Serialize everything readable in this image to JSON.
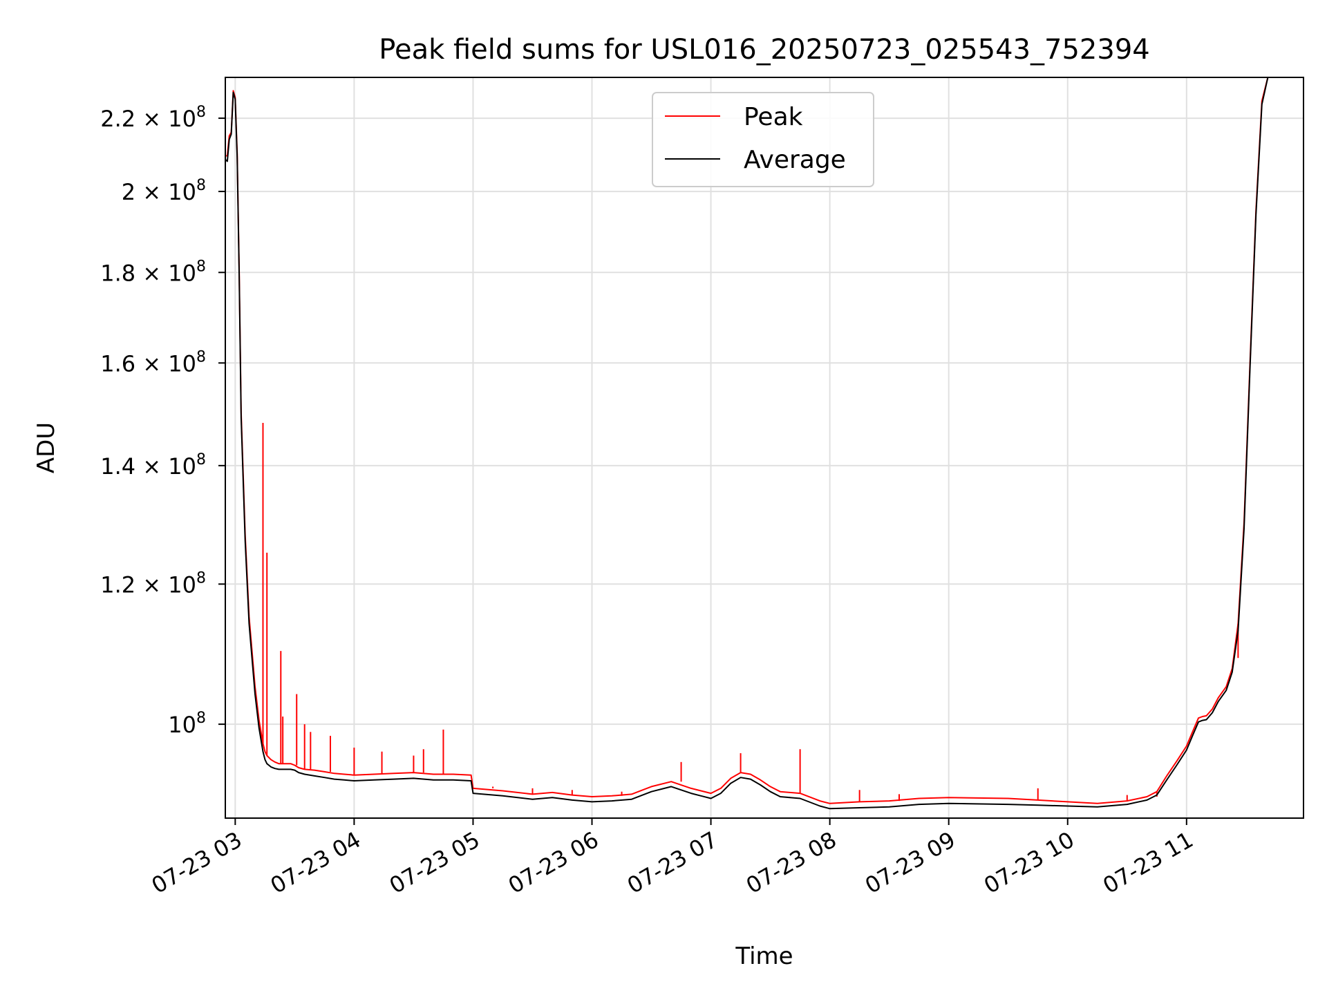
{
  "chart_data": {
    "type": "line",
    "title": "Peak field sums for USL016_20250723_025543_752394",
    "xlabel": "Time",
    "ylabel": "ADU",
    "y_scale": "log",
    "grid": true,
    "legend_position": "upper center",
    "xlim": [
      "2025-07-23T02:55:00",
      "2025-07-23T11:59:00"
    ],
    "ylim": [
      88500000,
      232000000
    ],
    "x_ticks": [
      {
        "value": "2025-07-23T03:00:00",
        "label": "07-23 03"
      },
      {
        "value": "2025-07-23T04:00:00",
        "label": "07-23 04"
      },
      {
        "value": "2025-07-23T05:00:00",
        "label": "07-23 05"
      },
      {
        "value": "2025-07-23T06:00:00",
        "label": "07-23 06"
      },
      {
        "value": "2025-07-23T07:00:00",
        "label": "07-23 07"
      },
      {
        "value": "2025-07-23T08:00:00",
        "label": "07-23 08"
      },
      {
        "value": "2025-07-23T09:00:00",
        "label": "07-23 09"
      },
      {
        "value": "2025-07-23T10:00:00",
        "label": "07-23 10"
      },
      {
        "value": "2025-07-23T11:00:00",
        "label": "07-23 11"
      }
    ],
    "y_ticks": [
      {
        "value": 100000000,
        "mantissa": "",
        "exp": "8"
      },
      {
        "value": 120000000,
        "mantissa": "1.2",
        "exp": "8"
      },
      {
        "value": 140000000,
        "mantissa": "1.4",
        "exp": "8"
      },
      {
        "value": 160000000,
        "mantissa": "1.6",
        "exp": "8"
      },
      {
        "value": 180000000,
        "mantissa": "1.8",
        "exp": "8"
      },
      {
        "value": 200000000,
        "mantissa": "2",
        "exp": "8"
      },
      {
        "value": 220000000,
        "mantissa": "2.2",
        "exp": "8"
      }
    ],
    "series": [
      {
        "name": "Peak",
        "color": "#ff0000",
        "x": [
          "2025-07-23T02:55:00",
          "2025-07-23T02:56:00",
          "2025-07-23T02:57:00",
          "2025-07-23T02:58:00",
          "2025-07-23T02:59:00",
          "2025-07-23T03:00:00",
          "2025-07-23T03:01:00",
          "2025-07-23T03:02:00",
          "2025-07-23T03:03:00",
          "2025-07-23T03:05:00",
          "2025-07-23T03:07:00",
          "2025-07-23T03:10:00",
          "2025-07-23T03:12:00",
          "2025-07-23T03:14:00",
          "2025-07-23T03:15:00",
          "2025-07-23T03:16:00",
          "2025-07-23T03:18:00",
          "2025-07-23T03:20:00",
          "2025-07-23T03:22:00",
          "2025-07-23T03:25:00",
          "2025-07-23T03:28:00",
          "2025-07-23T03:30:00",
          "2025-07-23T03:32:00",
          "2025-07-23T03:35:00",
          "2025-07-23T03:40:00",
          "2025-07-23T03:45:00",
          "2025-07-23T03:50:00",
          "2025-07-23T03:55:00",
          "2025-07-23T04:00:00",
          "2025-07-23T04:10:00",
          "2025-07-23T04:20:00",
          "2025-07-23T04:30:00",
          "2025-07-23T04:40:00",
          "2025-07-23T04:50:00",
          "2025-07-23T04:59:00",
          "2025-07-23T05:00:00",
          "2025-07-23T05:15:00",
          "2025-07-23T05:30:00",
          "2025-07-23T05:40:00",
          "2025-07-23T05:50:00",
          "2025-07-23T06:00:00",
          "2025-07-23T06:10:00",
          "2025-07-23T06:20:00",
          "2025-07-23T06:30:00",
          "2025-07-23T06:40:00",
          "2025-07-23T06:50:00",
          "2025-07-23T06:55:00",
          "2025-07-23T07:00:00",
          "2025-07-23T07:05:00",
          "2025-07-23T07:10:00",
          "2025-07-23T07:15:00",
          "2025-07-23T07:20:00",
          "2025-07-23T07:25:00",
          "2025-07-23T07:30:00",
          "2025-07-23T07:35:00",
          "2025-07-23T07:45:00",
          "2025-07-23T07:55:00",
          "2025-07-23T08:00:00",
          "2025-07-23T08:15:00",
          "2025-07-23T08:30:00",
          "2025-07-23T08:45:00",
          "2025-07-23T09:00:00",
          "2025-07-23T09:30:00",
          "2025-07-23T09:45:00",
          "2025-07-23T10:00:00",
          "2025-07-23T10:15:00",
          "2025-07-23T10:30:00",
          "2025-07-23T10:40:00",
          "2025-07-23T10:45:00",
          "2025-07-23T10:50:00",
          "2025-07-23T10:55:00",
          "2025-07-23T11:00:00",
          "2025-07-23T11:03:00",
          "2025-07-23T11:06:00",
          "2025-07-23T11:08:00",
          "2025-07-23T11:10:00",
          "2025-07-23T11:13:00",
          "2025-07-23T11:16:00",
          "2025-07-23T11:20:00",
          "2025-07-23T11:23:00",
          "2025-07-23T11:26:00",
          "2025-07-23T11:29:00",
          "2025-07-23T11:32:00",
          "2025-07-23T11:35:00",
          "2025-07-23T11:38:00",
          "2025-07-23T11:41:00"
        ],
        "y": [
          209500000,
          209500000,
          215000000,
          216000000,
          228000000,
          226000000,
          210000000,
          180000000,
          150000000,
          128000000,
          115000000,
          105000000,
          100500000,
          97500000,
          96500000,
          96000000,
          95500000,
          95200000,
          95000000,
          95000000,
          95000000,
          94800000,
          94500000,
          94300000,
          94200000,
          94000000,
          93800000,
          93700000,
          93600000,
          93700000,
          93800000,
          93900000,
          93700000,
          93700000,
          93600000,
          92000000,
          91700000,
          91300000,
          91500000,
          91200000,
          91000000,
          91100000,
          91300000,
          92200000,
          92800000,
          92000000,
          91700000,
          91400000,
          92000000,
          93200000,
          93900000,
          93700000,
          93000000,
          92200000,
          91600000,
          91400000,
          90500000,
          90200000,
          90400000,
          90500000,
          90800000,
          90900000,
          90800000,
          90600000,
          90400000,
          90200000,
          90500000,
          91000000,
          91600000,
          93500000,
          95300000,
          97200000,
          99000000,
          100800000,
          101000000,
          101100000,
          102000000,
          103500000,
          105000000,
          107500000,
          114000000,
          130000000,
          160000000,
          195000000,
          225000000,
          232000000
        ],
        "spikes": [
          {
            "x": "2025-07-23T03:14:00",
            "y": 148000000
          },
          {
            "x": "2025-07-23T03:16:00",
            "y": 125000000
          },
          {
            "x": "2025-07-23T03:23:00",
            "y": 110000000
          },
          {
            "x": "2025-07-23T03:24:00",
            "y": 101000000
          },
          {
            "x": "2025-07-23T03:31:00",
            "y": 104000000
          },
          {
            "x": "2025-07-23T03:35:00",
            "y": 100000000
          },
          {
            "x": "2025-07-23T03:38:00",
            "y": 99000000
          },
          {
            "x": "2025-07-23T03:48:00",
            "y": 98500000
          },
          {
            "x": "2025-07-23T04:00:00",
            "y": 97000000
          },
          {
            "x": "2025-07-23T04:14:00",
            "y": 96500000
          },
          {
            "x": "2025-07-23T04:30:00",
            "y": 96000000
          },
          {
            "x": "2025-07-23T04:35:00",
            "y": 96800000
          },
          {
            "x": "2025-07-23T04:45:00",
            "y": 99300000
          },
          {
            "x": "2025-07-23T05:10:00",
            "y": 92200000
          },
          {
            "x": "2025-07-23T05:30:00",
            "y": 92000000
          },
          {
            "x": "2025-07-23T05:50:00",
            "y": 91800000
          },
          {
            "x": "2025-07-23T06:15:00",
            "y": 91600000
          },
          {
            "x": "2025-07-23T06:45:00",
            "y": 95200000
          },
          {
            "x": "2025-07-23T07:15:00",
            "y": 96300000
          },
          {
            "x": "2025-07-23T07:45:00",
            "y": 96800000
          },
          {
            "x": "2025-07-23T08:15:00",
            "y": 91800000
          },
          {
            "x": "2025-07-23T08:35:00",
            "y": 91300000
          },
          {
            "x": "2025-07-23T09:45:00",
            "y": 92000000
          },
          {
            "x": "2025-07-23T10:30:00",
            "y": 91200000
          },
          {
            "x": "2025-07-23T10:45:00",
            "y": 91000000
          },
          {
            "x": "2025-07-23T11:26:00",
            "y": 109000000
          }
        ]
      },
      {
        "name": "Average",
        "color": "#000000",
        "x": [
          "2025-07-23T02:55:00",
          "2025-07-23T02:56:00",
          "2025-07-23T02:57:00",
          "2025-07-23T02:58:00",
          "2025-07-23T02:59:00",
          "2025-07-23T03:00:00",
          "2025-07-23T03:01:00",
          "2025-07-23T03:02:00",
          "2025-07-23T03:03:00",
          "2025-07-23T03:05:00",
          "2025-07-23T03:07:00",
          "2025-07-23T03:10:00",
          "2025-07-23T03:12:00",
          "2025-07-23T03:14:00",
          "2025-07-23T03:15:00",
          "2025-07-23T03:16:00",
          "2025-07-23T03:18:00",
          "2025-07-23T03:20:00",
          "2025-07-23T03:22:00",
          "2025-07-23T03:25:00",
          "2025-07-23T03:28:00",
          "2025-07-23T03:30:00",
          "2025-07-23T03:32:00",
          "2025-07-23T03:35:00",
          "2025-07-23T03:40:00",
          "2025-07-23T03:45:00",
          "2025-07-23T03:50:00",
          "2025-07-23T03:55:00",
          "2025-07-23T04:00:00",
          "2025-07-23T04:10:00",
          "2025-07-23T04:20:00",
          "2025-07-23T04:30:00",
          "2025-07-23T04:40:00",
          "2025-07-23T04:50:00",
          "2025-07-23T04:59:00",
          "2025-07-23T05:00:00",
          "2025-07-23T05:15:00",
          "2025-07-23T05:30:00",
          "2025-07-23T05:40:00",
          "2025-07-23T05:50:00",
          "2025-07-23T06:00:00",
          "2025-07-23T06:10:00",
          "2025-07-23T06:20:00",
          "2025-07-23T06:30:00",
          "2025-07-23T06:40:00",
          "2025-07-23T06:50:00",
          "2025-07-23T06:55:00",
          "2025-07-23T07:00:00",
          "2025-07-23T07:05:00",
          "2025-07-23T07:10:00",
          "2025-07-23T07:15:00",
          "2025-07-23T07:20:00",
          "2025-07-23T07:25:00",
          "2025-07-23T07:30:00",
          "2025-07-23T07:35:00",
          "2025-07-23T07:45:00",
          "2025-07-23T07:55:00",
          "2025-07-23T08:00:00",
          "2025-07-23T08:15:00",
          "2025-07-23T08:30:00",
          "2025-07-23T08:45:00",
          "2025-07-23T09:00:00",
          "2025-07-23T09:30:00",
          "2025-07-23T09:45:00",
          "2025-07-23T10:00:00",
          "2025-07-23T10:15:00",
          "2025-07-23T10:30:00",
          "2025-07-23T10:40:00",
          "2025-07-23T10:45:00",
          "2025-07-23T10:50:00",
          "2025-07-23T10:55:00",
          "2025-07-23T11:00:00",
          "2025-07-23T11:03:00",
          "2025-07-23T11:06:00",
          "2025-07-23T11:08:00",
          "2025-07-23T11:10:00",
          "2025-07-23T11:13:00",
          "2025-07-23T11:16:00",
          "2025-07-23T11:20:00",
          "2025-07-23T11:23:00",
          "2025-07-23T11:26:00",
          "2025-07-23T11:29:00",
          "2025-07-23T11:32:00",
          "2025-07-23T11:35:00",
          "2025-07-23T11:38:00",
          "2025-07-23T11:41:00"
        ],
        "y": [
          208500000,
          208000000,
          214000000,
          215500000,
          227500000,
          225500000,
          209000000,
          179000000,
          149000000,
          127000000,
          114000000,
          104000000,
          99500000,
          96500000,
          95500000,
          95000000,
          94600000,
          94400000,
          94300000,
          94300000,
          94300000,
          94200000,
          93900000,
          93700000,
          93500000,
          93300000,
          93100000,
          93000000,
          92900000,
          93000000,
          93100000,
          93200000,
          93000000,
          93000000,
          92900000,
          91400000,
          91100000,
          90700000,
          90900000,
          90600000,
          90400000,
          90500000,
          90700000,
          91600000,
          92200000,
          91400000,
          91100000,
          90800000,
          91400000,
          92600000,
          93300000,
          93100000,
          92400000,
          91600000,
          91000000,
          90800000,
          89900000,
          89600000,
          89700000,
          89800000,
          90100000,
          90200000,
          90100000,
          90000000,
          89900000,
          89800000,
          90100000,
          90600000,
          91200000,
          93000000,
          94800000,
          96700000,
          98500000,
          100300000,
          100500000,
          100600000,
          101500000,
          103000000,
          104500000,
          107000000,
          113000000,
          129000000,
          159000000,
          194000000,
          224000000,
          232000000
        ]
      }
    ]
  }
}
